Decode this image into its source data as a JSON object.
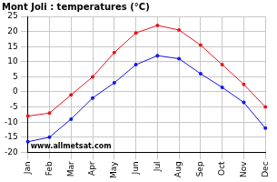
{
  "chart_data": {
    "type": "line",
    "title": "Mont Joli : temperatures (°C)",
    "categories": [
      "Jan",
      "Feb",
      "Mar",
      "Apr",
      "May",
      "Jun",
      "Jul",
      "Aug",
      "Sep",
      "Oct",
      "Nov",
      "Dec"
    ],
    "series": [
      {
        "color": "#e8141c",
        "marker": "circle",
        "values": [
          -8,
          -7,
          -1,
          5,
          13,
          19.5,
          22,
          20.5,
          15.5,
          9,
          2.5,
          -5
        ]
      },
      {
        "color": "#1414e6",
        "marker": "circle",
        "values": [
          -16.5,
          -15,
          -9,
          -2,
          3,
          9,
          12,
          11,
          6,
          1.5,
          -3.5,
          -12
        ]
      }
    ],
    "ylim": [
      -20,
      25
    ],
    "yticks": [
      -20,
      -15,
      -10,
      -5,
      0,
      5,
      10,
      15,
      20,
      25
    ],
    "grid": true,
    "annotations": [
      "www.allmetsat.com"
    ]
  }
}
